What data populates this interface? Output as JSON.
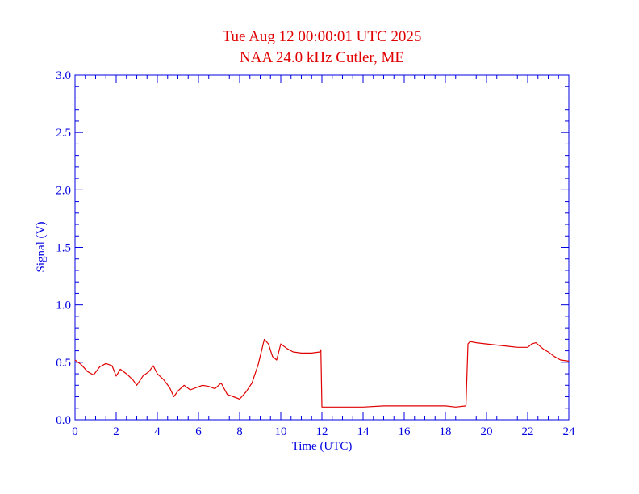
{
  "colors": {
    "axis": "#0000e0",
    "title": "#e00000",
    "series": "#e00000",
    "background": "#ffffff"
  },
  "chart_data": {
    "type": "line",
    "title": "Tue Aug 12 00:00:01 UTC 2025",
    "subtitle": "NAA 24.0 kHz Cutler, ME",
    "xlabel": "Time (UTC)",
    "ylabel": "Signal (V)",
    "xlim": [
      0,
      24
    ],
    "ylim": [
      0,
      3.0
    ],
    "xticks": [
      "0",
      "2",
      "4",
      "6",
      "8",
      "10",
      "12",
      "14",
      "16",
      "18",
      "20",
      "22",
      "24"
    ],
    "yticks": [
      "0.0",
      "0.5",
      "1.0",
      "1.5",
      "2.0",
      "2.5",
      "3.0"
    ],
    "grid": false,
    "series": [
      {
        "x": [
          0.0,
          0.3,
          0.6,
          0.9,
          1.2,
          1.5,
          1.8,
          2.0,
          2.2,
          2.5,
          2.8,
          3.0,
          3.3,
          3.6,
          3.8,
          4.0,
          4.3,
          4.6,
          4.8,
          5.0,
          5.3,
          5.6,
          5.9,
          6.2,
          6.5,
          6.8,
          7.1,
          7.4,
          7.7,
          8.0,
          8.3,
          8.6,
          8.9,
          9.2,
          9.4,
          9.6,
          9.8,
          10.0,
          10.3,
          10.6,
          11.0,
          11.5,
          11.9,
          11.95,
          12.0,
          13.0,
          14.0,
          15.0,
          16.0,
          17.0,
          18.0,
          18.5,
          19.0,
          19.1,
          19.2,
          19.5,
          20.0,
          20.5,
          21.0,
          21.5,
          22.0,
          22.2,
          22.4,
          22.6,
          22.8,
          23.0,
          23.3,
          23.6,
          24.0
        ],
        "y": [
          0.52,
          0.48,
          0.42,
          0.39,
          0.46,
          0.49,
          0.47,
          0.38,
          0.44,
          0.4,
          0.35,
          0.3,
          0.38,
          0.42,
          0.47,
          0.4,
          0.35,
          0.28,
          0.2,
          0.25,
          0.3,
          0.26,
          0.28,
          0.3,
          0.29,
          0.27,
          0.32,
          0.22,
          0.2,
          0.18,
          0.24,
          0.32,
          0.48,
          0.7,
          0.66,
          0.55,
          0.52,
          0.66,
          0.62,
          0.59,
          0.58,
          0.58,
          0.59,
          0.61,
          0.11,
          0.11,
          0.11,
          0.12,
          0.12,
          0.12,
          0.12,
          0.11,
          0.12,
          0.66,
          0.68,
          0.67,
          0.66,
          0.65,
          0.64,
          0.63,
          0.63,
          0.66,
          0.67,
          0.64,
          0.61,
          0.59,
          0.55,
          0.52,
          0.51
        ]
      }
    ]
  }
}
